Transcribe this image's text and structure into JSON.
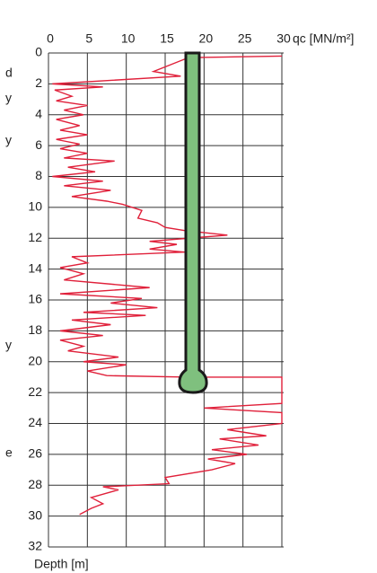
{
  "chart_data": {
    "type": "line",
    "x_label": "qc [MN/m²]",
    "y_label": "Depth [m]",
    "side_fragments": [
      "d",
      "y",
      "y",
      "y",
      "e"
    ],
    "x": [
      30,
      18,
      13.5,
      17,
      0.5,
      7,
      0.8,
      3,
      1,
      5,
      2,
      4.5,
      1,
      4,
      1.5,
      5,
      1,
      4,
      1.5,
      5,
      2,
      8.5,
      2.5,
      6,
      0.5,
      7,
      2,
      8,
      3,
      7.5,
      9.5,
      12,
      11.5,
      14,
      15,
      17.5,
      23,
      18,
      13,
      16.5,
      13,
      17.5,
      3,
      5,
      1.5,
      4.5,
      2,
      13,
      1.5,
      12,
      8,
      14,
      4.5,
      12.5,
      3,
      8,
      1.5,
      7,
      1.5,
      4.5,
      2.5,
      9,
      4.5,
      10,
      5,
      7.5,
      18,
      30,
      30,
      20,
      30,
      30,
      23,
      28,
      22,
      27,
      21,
      25.5,
      20.5,
      24,
      21,
      15,
      15.5,
      7,
      9,
      5.5,
      7,
      5.5,
      4
    ],
    "y": [
      0.2,
      0.3,
      1.2,
      1.5,
      2.0,
      2.2,
      2.4,
      2.8,
      3.1,
      3.4,
      3.7,
      4.0,
      4.3,
      4.7,
      5.0,
      5.3,
      5.6,
      5.9,
      6.2,
      6.5,
      6.8,
      7.0,
      7.4,
      7.7,
      8.0,
      8.3,
      8.6,
      8.9,
      9.3,
      9.6,
      9.8,
      10.2,
      10.7,
      11.0,
      11.3,
      11.5,
      11.8,
      12.0,
      12.2,
      12.4,
      12.7,
      12.9,
      13.2,
      13.6,
      13.9,
      14.3,
      14.7,
      15.2,
      15.6,
      15.9,
      16.2,
      16.5,
      16.8,
      17.0,
      17.3,
      17.6,
      18.0,
      18.3,
      18.6,
      19.0,
      19.3,
      19.7,
      20.0,
      20.2,
      20.6,
      20.9,
      21.0,
      21.0,
      22.7,
      23.0,
      23.3,
      24.0,
      24.4,
      24.8,
      25.0,
      25.4,
      25.7,
      26.0,
      26.3,
      26.6,
      27.0,
      27.5,
      27.9,
      28.1,
      28.3,
      28.8,
      29.2,
      29.5,
      29.9
    ],
    "color": "#e0203a",
    "xlim": [
      0,
      30
    ],
    "xticks": [
      0,
      5,
      10,
      15,
      20,
      25,
      30
    ],
    "ylim": [
      0,
      32
    ],
    "yticks": [
      0,
      2,
      4,
      6,
      8,
      10,
      12,
      14,
      16,
      18,
      20,
      22,
      24,
      26,
      28,
      30,
      32
    ],
    "grid": true
  }
}
